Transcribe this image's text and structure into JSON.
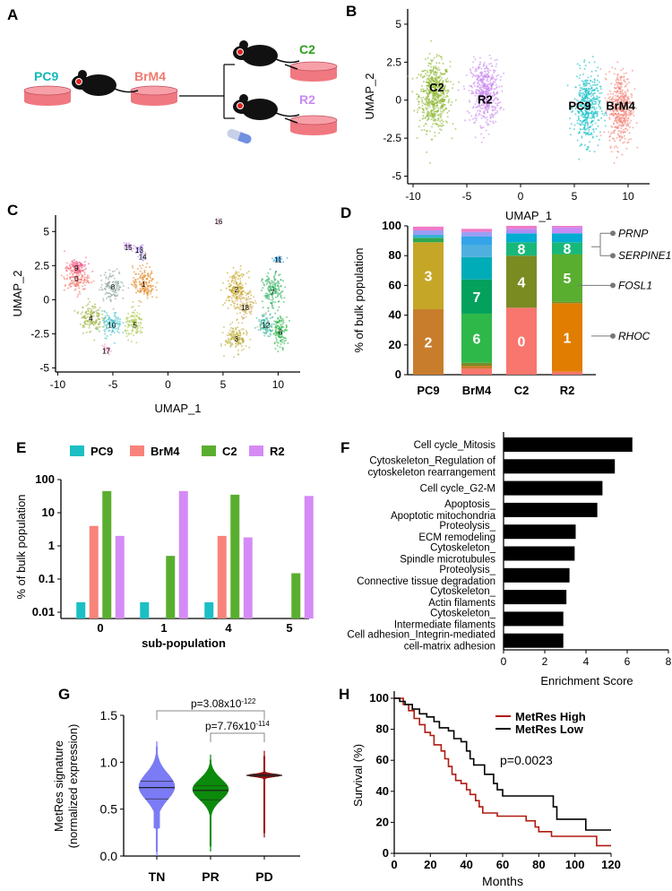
{
  "panel_labels": [
    "A",
    "B",
    "C",
    "D",
    "E",
    "F",
    "G",
    "H"
  ],
  "panel_a": {
    "labels": [
      {
        "text": "PC9",
        "color": "#14b8b8"
      },
      {
        "text": "BrM4",
        "color": "#f07a6e"
      },
      {
        "text": "C2",
        "color": "#2ea01e"
      },
      {
        "text": "R2",
        "color": "#c98af0"
      }
    ]
  },
  "chart_data": [
    {
      "id": "B",
      "type": "scatter",
      "xlabel": "UMAP_1",
      "ylabel": "UMAP_2",
      "xticks": [
        -10,
        -5,
        0,
        5,
        10
      ],
      "yticks": [
        5,
        2.5,
        0,
        -2.5,
        -5
      ],
      "xlim": [
        -10.5,
        12
      ],
      "ylim": [
        -5.5,
        6
      ],
      "groups": [
        {
          "name": "C2",
          "color": "#8db832",
          "center": [
            -8,
            0.3
          ],
          "spread": [
            1.3,
            2.0
          ],
          "n": 600,
          "label_at": [
            -7.8,
            0.8
          ]
        },
        {
          "name": "R2",
          "color": "#c98af0",
          "center": [
            -3.3,
            0.5
          ],
          "spread": [
            1.2,
            1.9
          ],
          "n": 500,
          "label_at": [
            -3.3,
            0
          ]
        },
        {
          "name": "PC9",
          "color": "#16c0c8",
          "center": [
            6.2,
            -0.5
          ],
          "spread": [
            1.1,
            2.1
          ],
          "n": 450,
          "label_at": [
            5.5,
            -0.4
          ]
        },
        {
          "name": "BrM4",
          "color": "#f38478",
          "center": [
            9.3,
            -0.5
          ],
          "spread": [
            1.0,
            2.2
          ],
          "n": 450,
          "label_at": [
            9.3,
            -0.4
          ]
        }
      ]
    },
    {
      "id": "C",
      "type": "scatter",
      "xlabel": "UMAP_1",
      "ylabel": "UMAP_2",
      "xticks": [
        -10,
        -5,
        0,
        5,
        10
      ],
      "yticks": [
        5,
        2.5,
        0,
        -2.5,
        -5
      ],
      "xlim": [
        -10.2,
        12
      ],
      "ylim": [
        -5.3,
        6.2
      ],
      "clusters": [
        {
          "name": "0",
          "color": "#f8766d",
          "center": [
            -8.3,
            1.6
          ],
          "spread": [
            1.0,
            1.0
          ],
          "n": 160
        },
        {
          "name": "9",
          "color": "#f05a88",
          "center": [
            -8.3,
            2.4
          ],
          "spread": [
            0.8,
            0.6
          ],
          "n": 80
        },
        {
          "name": "1",
          "color": "#e28a2a",
          "center": [
            -2.2,
            1.2
          ],
          "spread": [
            0.9,
            1.1
          ],
          "n": 160
        },
        {
          "name": "8",
          "color": "#8fa6a0",
          "center": [
            -5.0,
            1.0
          ],
          "spread": [
            1.0,
            1.0
          ],
          "n": 120
        },
        {
          "name": "4",
          "color": "#9cb340",
          "center": [
            -7.0,
            -1.3
          ],
          "spread": [
            0.9,
            1.0
          ],
          "n": 140
        },
        {
          "name": "10",
          "color": "#3fc1c9",
          "center": [
            -5.1,
            -1.8
          ],
          "spread": [
            0.8,
            0.8
          ],
          "n": 110
        },
        {
          "name": "5",
          "color": "#a8c84a",
          "center": [
            -3.0,
            -1.8
          ],
          "spread": [
            0.8,
            0.9
          ],
          "n": 110
        },
        {
          "name": "17",
          "color": "#f0a0c8",
          "center": [
            -5.6,
            -3.7
          ],
          "spread": [
            0.5,
            0.3
          ],
          "n": 30
        },
        {
          "name": "15",
          "color": "#c090e8",
          "center": [
            -3.6,
            3.9
          ],
          "spread": [
            0.4,
            0.4
          ],
          "n": 30
        },
        {
          "name": "13",
          "color": "#a07ae8",
          "center": [
            -2.6,
            3.7
          ],
          "spread": [
            0.4,
            0.3
          ],
          "n": 25
        },
        {
          "name": "14",
          "color": "#b8a0f0",
          "center": [
            -2.3,
            3.2
          ],
          "spread": [
            0.3,
            0.3
          ],
          "n": 20
        },
        {
          "name": "16",
          "color": "#f0a0d8",
          "center": [
            4.6,
            5.8
          ],
          "spread": [
            0.1,
            0.3
          ],
          "n": 10
        },
        {
          "name": "11",
          "color": "#3aa4e0",
          "center": [
            10.0,
            3.0
          ],
          "spread": [
            0.5,
            0.2
          ],
          "n": 30
        },
        {
          "name": "2",
          "color": "#c6a626",
          "center": [
            6.2,
            0.8
          ],
          "spread": [
            0.9,
            1.1
          ],
          "n": 170
        },
        {
          "name": "18",
          "color": "#d0b060",
          "center": [
            7.0,
            -0.5
          ],
          "spread": [
            0.8,
            0.9
          ],
          "n": 100
        },
        {
          "name": "3",
          "color": "#bfb040",
          "center": [
            6.2,
            -2.8
          ],
          "spread": [
            0.9,
            0.9
          ],
          "n": 150
        },
        {
          "name": "7",
          "color": "#30b060",
          "center": [
            9.5,
            0.6
          ],
          "spread": [
            0.8,
            1.2
          ],
          "n": 160
        },
        {
          "name": "12",
          "color": "#40b8a0",
          "center": [
            8.9,
            -1.8
          ],
          "spread": [
            0.7,
            0.7
          ],
          "n": 100
        },
        {
          "name": "6",
          "color": "#28b848",
          "center": [
            10.2,
            -2.3
          ],
          "spread": [
            0.6,
            1.0
          ],
          "n": 120
        }
      ]
    },
    {
      "id": "D",
      "type": "bar",
      "stacked": true,
      "ylabel": "% of bulk population",
      "ylim": [
        0,
        100
      ],
      "yticks": [
        0,
        20,
        40,
        60,
        80,
        100
      ],
      "categories": [
        "PC9",
        "BrM4",
        "C2",
        "R2"
      ],
      "stacks": [
        [
          {
            "v": 44,
            "c": "#c87d2c",
            "label": "2"
          },
          {
            "v": 45,
            "c": "#c6a626",
            "label": "3"
          },
          {
            "v": 3,
            "c": "#2fa84f"
          },
          {
            "v": 2,
            "c": "#34b3d8"
          },
          {
            "v": 3,
            "c": "#9b9cf5"
          },
          {
            "v": 2.5,
            "c": "#f07ac8"
          }
        ],
        [
          {
            "v": 4,
            "c": "#f8766d"
          },
          {
            "v": 2,
            "c": "#c87d2c"
          },
          {
            "v": 2,
            "c": "#7a8b27"
          },
          {
            "v": 33,
            "c": "#2fb84a",
            "label": "6"
          },
          {
            "v": 23,
            "c": "#03a15b",
            "label": "7"
          },
          {
            "v": 15,
            "c": "#00acb8"
          },
          {
            "v": 8,
            "c": "#4fb0e0"
          },
          {
            "v": 6,
            "c": "#35a4e8"
          },
          {
            "v": 3,
            "c": "#9c9ff5"
          },
          {
            "v": 2,
            "c": "#f07ac8"
          }
        ],
        [
          {
            "v": 45,
            "c": "#f8766d",
            "label": "0"
          },
          {
            "v": 35,
            "c": "#7a8b22",
            "label": "4"
          },
          {
            "v": 9,
            "c": "#18b87a",
            "label": "8"
          },
          {
            "v": 6,
            "c": "#00acd2"
          },
          {
            "v": 3,
            "c": "#b18af5"
          },
          {
            "v": 2,
            "c": "#f07ac8"
          }
        ],
        [
          {
            "v": 2,
            "c": "#f8766d"
          },
          {
            "v": 46,
            "c": "#e17d00",
            "label": "1"
          },
          {
            "v": 1,
            "c": "#7a8b22"
          },
          {
            "v": 32,
            "c": "#5aae2f",
            "label": "5"
          },
          {
            "v": 8,
            "c": "#18b87a",
            "label": "8"
          },
          {
            "v": 6,
            "c": "#00acd2"
          },
          {
            "v": 4,
            "c": "#c78af5"
          },
          {
            "v": 1,
            "c": "#f07ac8"
          }
        ]
      ],
      "gene_annotations": [
        {
          "gene": "PRNP",
          "y": 91
        },
        {
          "gene": "SERPINE1",
          "y": 80
        },
        {
          "gene": "FOSL1",
          "y": 60
        },
        {
          "gene": "RHOC",
          "y": 26
        }
      ]
    },
    {
      "id": "E",
      "type": "bar",
      "yscale": "log",
      "ylabel": "% of bulk population",
      "xlabel": "sub-population",
      "ylim": [
        0.01,
        100
      ],
      "yticks": [
        "100",
        "10",
        "1",
        "0.1",
        "0.01"
      ],
      "categories": [
        "0",
        "1",
        "4",
        "5"
      ],
      "series": [
        {
          "name": "PC9",
          "color": "#1bbfc4",
          "values": [
            0.02,
            0.02,
            0.02,
            null
          ]
        },
        {
          "name": "BrM4",
          "color": "#f8837a",
          "values": [
            4,
            null,
            2,
            null
          ]
        },
        {
          "name": "C2",
          "color": "#5aae2f",
          "values": [
            45,
            0.5,
            35,
            0.15
          ]
        },
        {
          "name": "R2",
          "color": "#d58af5",
          "values": [
            2,
            45,
            1.8,
            32
          ]
        }
      ]
    },
    {
      "id": "F",
      "type": "bar",
      "orientation": "horizontal",
      "xlabel": "Enrichment Score",
      "xlim": [
        0,
        8
      ],
      "xticks": [
        0,
        2,
        4,
        6,
        8
      ],
      "categories": [
        [
          "Cell cycle_Mitosis"
        ],
        [
          "Cytoskeleton_Regulation of",
          "cytoskeleton rearrangement"
        ],
        [
          "Cell cycle_G2-M"
        ],
        [
          "Apoptosis_",
          "Apoptotic mitochondria"
        ],
        [
          "Proteolysis_",
          "ECM remodeling"
        ],
        [
          "Cytoskeleton_",
          "Spindle microtubules"
        ],
        [
          "Proteolysis_",
          "Connective tissue degradation"
        ],
        [
          "Cytoskeleton_",
          "Actin filaments"
        ],
        [
          "Cytoskeleton_",
          "Intermediate filaments"
        ],
        [
          "Cell adhesion_Integrin-mediated",
          "cell-matrix adhesion"
        ]
      ],
      "values": [
        6.25,
        5.4,
        4.8,
        4.55,
        3.5,
        3.45,
        3.2,
        3.05,
        2.9,
        2.9
      ]
    },
    {
      "id": "G",
      "type": "violin",
      "ylabel": [
        "MetRes signature",
        "(normalized expression)"
      ],
      "ylim": [
        0,
        1.5
      ],
      "yticks": [
        "0.0",
        "0.5",
        "1.0",
        "1.5"
      ],
      "categories": [
        "TN",
        "PR",
        "PD"
      ],
      "groups": [
        {
          "name": "TN",
          "color": "#7b7bf5",
          "min": 0.0,
          "q1": 0.61,
          "median": 0.73,
          "q3": 0.8,
          "max": 1.22,
          "mode": 0.74,
          "width": 0.9
        },
        {
          "name": "PR",
          "color": "#0b8a0b",
          "min": 0.05,
          "q1": 0.6,
          "median": 0.7,
          "q3": 0.75,
          "max": 1.08,
          "mode": 0.71,
          "width": 0.85
        },
        {
          "name": "PD",
          "color": "#9b1010",
          "min": 0.2,
          "q1": 0.85,
          "median": 0.86,
          "q3": 0.87,
          "max": 1.12,
          "mode": 0.86,
          "width": 0.9
        }
      ],
      "comparisons": [
        {
          "a": "TN",
          "b": "PD",
          "p": "p=3.08x10",
          "exp": "-122"
        },
        {
          "a": "PR",
          "b": "PD",
          "p": "p=7.76x10",
          "exp": "-114"
        }
      ]
    },
    {
      "id": "H",
      "type": "line",
      "step": true,
      "xlabel": "Months",
      "ylabel": "Survival (%)",
      "xlim": [
        0,
        120
      ],
      "ylim": [
        0,
        100
      ],
      "xticks": [
        0,
        20,
        40,
        60,
        80,
        100,
        120
      ],
      "yticks": [
        0,
        20,
        40,
        60,
        80,
        100
      ],
      "annotation": "p=0.0023",
      "series": [
        {
          "name": "MetRes High",
          "color": "#b01a10",
          "points": [
            [
              0,
              100
            ],
            [
              5,
              96
            ],
            [
              8,
              92
            ],
            [
              11,
              87
            ],
            [
              14,
              83
            ],
            [
              17,
              78
            ],
            [
              20,
              76
            ],
            [
              22,
              70
            ],
            [
              26,
              66
            ],
            [
              28,
              61
            ],
            [
              30,
              56
            ],
            [
              32,
              51
            ],
            [
              34,
              47
            ],
            [
              37,
              45
            ],
            [
              40,
              41
            ],
            [
              42,
              38
            ],
            [
              45,
              34
            ],
            [
              47,
              30
            ],
            [
              49,
              26
            ],
            [
              53,
              26
            ],
            [
              57,
              24
            ],
            [
              73,
              24
            ],
            [
              73,
              21
            ],
            [
              77,
              21
            ],
            [
              78,
              17
            ],
            [
              80,
              14
            ],
            [
              87,
              14
            ],
            [
              87,
              11
            ],
            [
              112,
              11
            ],
            [
              112,
              5
            ],
            [
              120,
              5
            ]
          ]
        },
        {
          "name": "MetRes Low",
          "color": "#000000",
          "points": [
            [
              0,
              100
            ],
            [
              3,
              98
            ],
            [
              6,
              96
            ],
            [
              10,
              93
            ],
            [
              14,
              90
            ],
            [
              18,
              88
            ],
            [
              22,
              85
            ],
            [
              25,
              81
            ],
            [
              30,
              79
            ],
            [
              33,
              74
            ],
            [
              37,
              72
            ],
            [
              40,
              66
            ],
            [
              42,
              61
            ],
            [
              44,
              57
            ],
            [
              48,
              57
            ],
            [
              50,
              51
            ],
            [
              53,
              51
            ],
            [
              55,
              45
            ],
            [
              57,
              41
            ],
            [
              60,
              37
            ],
            [
              87,
              37
            ],
            [
              88,
              30
            ],
            [
              90,
              22
            ],
            [
              106,
              22
            ],
            [
              106,
              15
            ],
            [
              120,
              15
            ]
          ]
        }
      ]
    }
  ]
}
